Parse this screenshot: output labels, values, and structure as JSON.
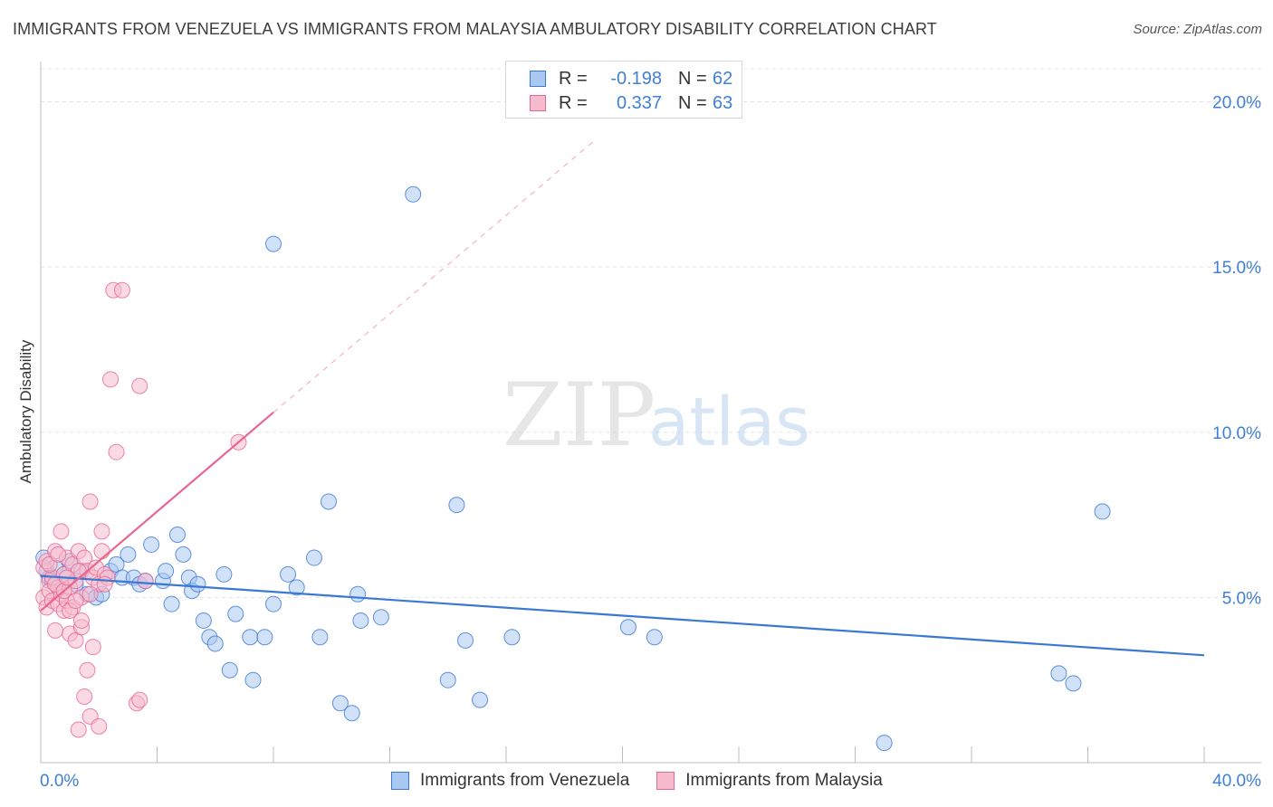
{
  "title": "IMMIGRANTS FROM VENEZUELA VS IMMIGRANTS FROM MALAYSIA AMBULATORY DISABILITY CORRELATION CHART",
  "source": "Source: ZipAtlas.com",
  "watermark": {
    "zip": "ZIP",
    "atlas": "atlas"
  },
  "legend": {
    "rows": [
      {
        "r_label": "R =",
        "r_value": "-0.198",
        "n_label": "N =",
        "n_value": "62"
      },
      {
        "r_label": "R =",
        "r_value": "0.337",
        "n_label": "N =",
        "n_value": "63"
      }
    ]
  },
  "chart_data": {
    "type": "scatter",
    "title": "IMMIGRANTS FROM VENEZUELA VS IMMIGRANTS FROM MALAYSIA AMBULATORY DISABILITY CORRELATION CHART",
    "xlabel": "",
    "ylabel": "Ambulatory Disability",
    "xlim": [
      0,
      40
    ],
    "ylim": [
      0,
      21
    ],
    "x_tick_labels": [
      {
        "value": 0,
        "label": "0.0%"
      },
      {
        "value": 40,
        "label": "40.0%"
      }
    ],
    "y_tick_labels": [
      {
        "value": 5,
        "label": "5.0%"
      },
      {
        "value": 10,
        "label": "10.0%"
      },
      {
        "value": 15,
        "label": "15.0%"
      },
      {
        "value": 20,
        "label": "20.0%"
      }
    ],
    "series": [
      {
        "name": "Immigrants from Venezuela",
        "color": "#3a78d4",
        "fill": "#a9c8f2",
        "points": [
          [
            0.1,
            6.2
          ],
          [
            0.2,
            5.8
          ],
          [
            0.3,
            5.6
          ],
          [
            0.4,
            5.5
          ],
          [
            0.5,
            5.9
          ],
          [
            0.6,
            5.3
          ],
          [
            0.8,
            5.7
          ],
          [
            1.0,
            6.1
          ],
          [
            1.2,
            5.4
          ],
          [
            1.4,
            5.8
          ],
          [
            1.6,
            5.1
          ],
          [
            1.9,
            5.0
          ],
          [
            2.1,
            5.1
          ],
          [
            2.4,
            5.8
          ],
          [
            2.6,
            6.0
          ],
          [
            2.8,
            5.6
          ],
          [
            3.0,
            6.3
          ],
          [
            3.2,
            5.6
          ],
          [
            3.4,
            5.4
          ],
          [
            3.6,
            5.5
          ],
          [
            3.8,
            6.6
          ],
          [
            4.2,
            5.5
          ],
          [
            4.3,
            5.8
          ],
          [
            4.5,
            4.8
          ],
          [
            4.7,
            6.9
          ],
          [
            4.9,
            6.3
          ],
          [
            5.1,
            5.6
          ],
          [
            5.2,
            5.2
          ],
          [
            5.4,
            5.4
          ],
          [
            5.6,
            4.3
          ],
          [
            5.8,
            3.8
          ],
          [
            6.0,
            3.6
          ],
          [
            6.3,
            5.7
          ],
          [
            6.5,
            2.8
          ],
          [
            6.7,
            4.5
          ],
          [
            7.2,
            3.8
          ],
          [
            7.3,
            2.5
          ],
          [
            7.7,
            3.8
          ],
          [
            8.0,
            4.8
          ],
          [
            8.0,
            15.7
          ],
          [
            8.5,
            5.7
          ],
          [
            8.8,
            5.3
          ],
          [
            9.4,
            6.2
          ],
          [
            9.6,
            3.8
          ],
          [
            9.9,
            7.9
          ],
          [
            10.3,
            1.8
          ],
          [
            10.7,
            1.5
          ],
          [
            10.9,
            5.1
          ],
          [
            11.0,
            4.3
          ],
          [
            11.7,
            4.4
          ],
          [
            12.8,
            17.2
          ],
          [
            14.0,
            2.5
          ],
          [
            14.3,
            7.8
          ],
          [
            14.6,
            3.7
          ],
          [
            15.1,
            1.9
          ],
          [
            16.2,
            3.8
          ],
          [
            20.2,
            4.1
          ],
          [
            21.1,
            3.8
          ],
          [
            29.0,
            0.6
          ],
          [
            35.0,
            2.7
          ],
          [
            35.5,
            2.4
          ],
          [
            36.5,
            7.6
          ]
        ],
        "trend": {
          "x": [
            0,
            40
          ],
          "y": [
            5.65,
            3.25
          ]
        }
      },
      {
        "name": "Immigrants from Malaysia",
        "color": "#e8678f",
        "fill": "#f6bccd",
        "points": [
          [
            0.1,
            5.9
          ],
          [
            0.1,
            5.0
          ],
          [
            0.2,
            6.1
          ],
          [
            0.2,
            4.7
          ],
          [
            0.3,
            5.5
          ],
          [
            0.3,
            5.2
          ],
          [
            0.4,
            4.9
          ],
          [
            0.4,
            5.6
          ],
          [
            0.5,
            6.4
          ],
          [
            0.5,
            4.0
          ],
          [
            0.6,
            5.3
          ],
          [
            0.6,
            4.8
          ],
          [
            0.7,
            7.0
          ],
          [
            0.7,
            5.1
          ],
          [
            0.8,
            5.7
          ],
          [
            0.8,
            4.6
          ],
          [
            0.9,
            6.2
          ],
          [
            0.9,
            4.9
          ],
          [
            1.0,
            5.3
          ],
          [
            1.0,
            3.9
          ],
          [
            1.1,
            6.0
          ],
          [
            1.1,
            4.7
          ],
          [
            1.2,
            5.5
          ],
          [
            1.2,
            3.7
          ],
          [
            1.3,
            6.4
          ],
          [
            1.3,
            1.0
          ],
          [
            1.4,
            5.0
          ],
          [
            1.4,
            4.1
          ],
          [
            1.5,
            6.2
          ],
          [
            1.5,
            2.0
          ],
          [
            1.6,
            5.8
          ],
          [
            1.6,
            2.8
          ],
          [
            1.7,
            7.9
          ],
          [
            1.7,
            1.4
          ],
          [
            1.8,
            5.6
          ],
          [
            1.8,
            3.5
          ],
          [
            1.9,
            5.9
          ],
          [
            2.0,
            5.4
          ],
          [
            2.0,
            1.1
          ],
          [
            2.1,
            7.0
          ],
          [
            2.1,
            6.4
          ],
          [
            2.2,
            5.7
          ],
          [
            2.3,
            5.6
          ],
          [
            2.4,
            11.6
          ],
          [
            2.5,
            14.3
          ],
          [
            2.6,
            9.4
          ],
          [
            2.8,
            14.3
          ],
          [
            3.3,
            1.8
          ],
          [
            3.4,
            1.9
          ],
          [
            3.4,
            11.4
          ],
          [
            3.6,
            5.5
          ],
          [
            6.8,
            9.7
          ],
          [
            0.3,
            6.0
          ],
          [
            0.5,
            5.4
          ],
          [
            0.8,
            5.2
          ],
          [
            1.0,
            4.6
          ],
          [
            1.3,
            5.8
          ],
          [
            1.4,
            4.3
          ],
          [
            1.2,
            4.9
          ],
          [
            0.9,
            5.6
          ],
          [
            0.6,
            6.3
          ],
          [
            1.7,
            5.1
          ],
          [
            2.2,
            5.4
          ]
        ],
        "trend": {
          "x": [
            0,
            8.0
          ],
          "y": [
            4.6,
            10.6
          ]
        },
        "trend_extension": {
          "x": [
            8.0,
            19.0
          ],
          "y": [
            10.6,
            18.8
          ]
        }
      }
    ]
  },
  "bottom_legend": {
    "items": [
      {
        "label": "Immigrants from Venezuela"
      },
      {
        "label": "Immigrants from Malaysia"
      }
    ]
  },
  "colors": {
    "blue_stroke": "#3a78d4",
    "blue_fill": "#a9c8f2",
    "pink_stroke": "#e8678f",
    "pink_fill": "#f6bccd",
    "tick_text": "#3f7fd6",
    "grid": "#e4e4e4"
  }
}
